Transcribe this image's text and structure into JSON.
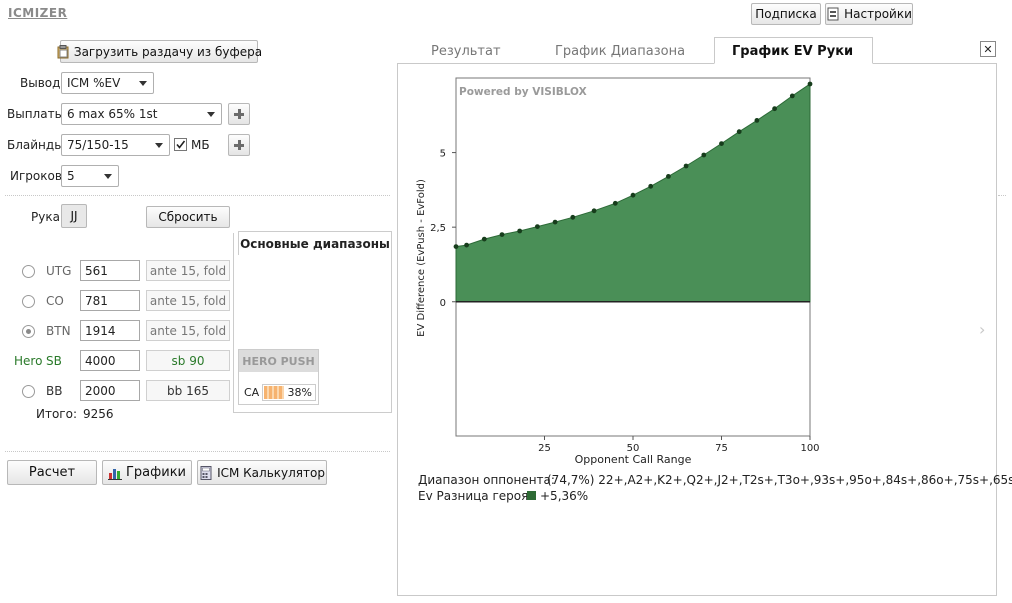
{
  "app": {
    "title": "ICMIZER"
  },
  "top_buttons": {
    "subscription": "Подписка",
    "settings": "Настройки"
  },
  "left": {
    "load_button": "Загрузить раздачу из буфера",
    "output_label": "Вывод",
    "output_value": "ICM %EV",
    "payouts_label": "Выплаты",
    "payouts_value": "6 max 65% 1st",
    "blinds_label": "Блайнды",
    "blinds_value": "75/150-15",
    "mb_label": "МБ",
    "players_label": "Игроков",
    "players_value": "5",
    "hand_label": "Рука",
    "hand_value": "JJ",
    "reset_button": "Сбросить",
    "ranges_title": "Основные диапазоны",
    "hero_label": "Hero",
    "positions": [
      {
        "name": "UTG",
        "stack": "561",
        "action": "ante 15, fold"
      },
      {
        "name": "CO",
        "stack": "781",
        "action": "ante 15, fold"
      },
      {
        "name": "BTN",
        "stack": "1914",
        "action": "ante 15, fold"
      },
      {
        "name": "SB",
        "stack": "4000",
        "action": "sb 90"
      },
      {
        "name": "BB",
        "stack": "2000",
        "action": "bb 165"
      }
    ],
    "hero_push": {
      "title": "HERO PUSH",
      "hand": "CA",
      "percent": "38%",
      "fill": 0.38
    },
    "total_label": "Итого:",
    "total_value": "9256",
    "calc_button": "Расчет",
    "charts_button": "Графики",
    "icm_calc_button": "ICM Калькулятор"
  },
  "tabs": [
    "Результат",
    "График Диапазона",
    "График EV Руки"
  ],
  "close_symbol": "✕",
  "chart_data": {
    "type": "area",
    "watermark": "Powered by VISIBLOX",
    "xlabel": "Opponent Call Range",
    "ylabel": "EV Difference (EvPush - EvFold)",
    "xlim": [
      0,
      100
    ],
    "ylim": [
      -4.5,
      7.5
    ],
    "x_ticks": [
      25,
      50,
      75,
      100
    ],
    "y_ticks": [
      0,
      2.5,
      5
    ],
    "y_tick_labels": [
      "0",
      "2,5",
      "5"
    ],
    "grid": false,
    "fill_color": "#4a8f57",
    "line_color": "#2c6a37",
    "x": [
      0,
      3,
      8,
      13,
      18,
      23,
      28,
      33,
      39,
      45,
      50,
      55,
      60,
      65,
      70,
      75,
      80,
      85,
      90,
      95,
      100
    ],
    "values": [
      1.85,
      1.9,
      2.1,
      2.25,
      2.37,
      2.52,
      2.67,
      2.83,
      3.05,
      3.3,
      3.57,
      3.87,
      4.2,
      4.55,
      4.92,
      5.3,
      5.7,
      6.08,
      6.47,
      6.9,
      7.3
    ]
  },
  "info": {
    "opponent_range_label": "Диапазон оппонента:",
    "opponent_range_value": "(74,7%) 22+,A2+,K2+,Q2+,J2+,T2s+,T3o+,93s+,95o+,84s+,86o+,75s+,65s",
    "hero_ev_label": "Ev Разница героя:",
    "hero_ev_value": "+5,36%",
    "hero_ev_color": "#2e6b35"
  },
  "right_arrow": "›"
}
